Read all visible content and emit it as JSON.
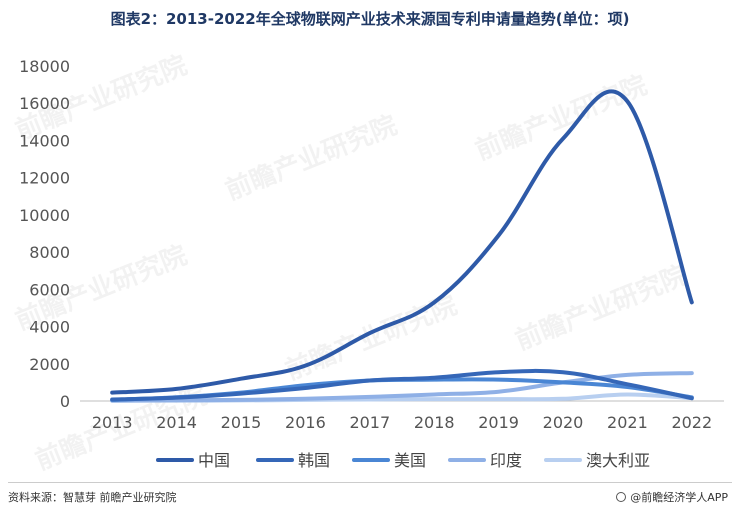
{
  "title": "图表2：2013-2022年全球物联网产业技术来源国专利申请量趋势(单位：项)",
  "source": "资料来源：智慧芽 前瞻产业研究院",
  "brand": "@前瞻经济学人APP",
  "watermark": "前瞻产业研究院",
  "chart_data": {
    "type": "line",
    "title": "图表2：2013-2022年全球物联网产业技术来源国专利申请量趋势(单位：项)",
    "xlabel": "",
    "ylabel": "",
    "x": [
      "2013",
      "2014",
      "2015",
      "2016",
      "2017",
      "2018",
      "2019",
      "2020",
      "2021",
      "2022"
    ],
    "ylim": [
      0,
      18000
    ],
    "yticks": [
      0,
      2000,
      4000,
      6000,
      8000,
      10000,
      12000,
      14000,
      16000,
      18000
    ],
    "grid": false,
    "legend": "bottom",
    "series": [
      {
        "name": "中国",
        "color": "#2e5aa8",
        "values": [
          450,
          650,
          1200,
          1900,
          3650,
          5300,
          8900,
          14100,
          16100,
          5300
        ]
      },
      {
        "name": "韩国",
        "color": "#3567b8",
        "values": [
          80,
          180,
          400,
          700,
          1100,
          1250,
          1550,
          1550,
          900,
          150
        ]
      },
      {
        "name": "美国",
        "color": "#4a86d4",
        "values": [
          60,
          200,
          450,
          850,
          1100,
          1150,
          1150,
          1000,
          750,
          200
        ]
      },
      {
        "name": "印度",
        "color": "#8fb0e6",
        "values": [
          20,
          40,
          60,
          120,
          220,
          350,
          500,
          1000,
          1400,
          1500
        ]
      },
      {
        "name": "澳大利亚",
        "color": "#b8cff0",
        "values": [
          10,
          20,
          30,
          60,
          80,
          100,
          100,
          120,
          350,
          150
        ]
      }
    ]
  }
}
